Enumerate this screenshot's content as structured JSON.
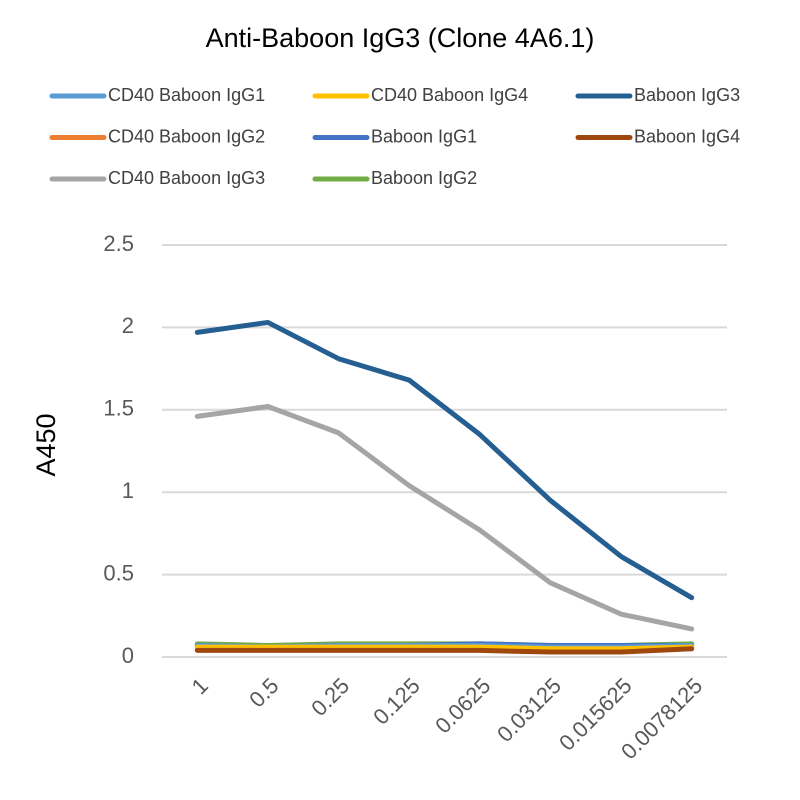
{
  "chart_data": {
    "type": "line",
    "title": "Anti-Baboon IgG3 (Clone 4A6.1)",
    "y_label": "A450",
    "categories": [
      "1",
      "0.5",
      "0.25",
      "0.125",
      "0.0625",
      "0.03125",
      "0.015625",
      "0.0078125"
    ],
    "series": [
      {
        "name": "CD40 Baboon IgG1",
        "color": "#5b9bd5",
        "values": [
          0.07,
          0.06,
          0.07,
          0.07,
          0.07,
          0.06,
          0.06,
          0.07
        ]
      },
      {
        "name": "CD40 Baboon IgG4",
        "color": "#ffc000",
        "values": [
          0.06,
          0.06,
          0.06,
          0.06,
          0.06,
          0.05,
          0.05,
          0.06
        ]
      },
      {
        "name": "Baboon IgG3",
        "color": "#255e91",
        "values": [
          1.97,
          2.03,
          1.81,
          1.68,
          1.35,
          0.95,
          0.61,
          0.36
        ]
      },
      {
        "name": "CD40 Baboon IgG2",
        "color": "#ed7d31",
        "values": [
          0.05,
          0.05,
          0.05,
          0.05,
          0.05,
          0.04,
          0.04,
          0.06
        ]
      },
      {
        "name": "Baboon IgG1",
        "color": "#4472c4",
        "values": [
          0.07,
          0.06,
          0.07,
          0.07,
          0.08,
          0.07,
          0.07,
          0.07
        ]
      },
      {
        "name": "Baboon IgG4",
        "color": "#9e480e",
        "values": [
          0.04,
          0.04,
          0.04,
          0.04,
          0.04,
          0.03,
          0.03,
          0.05
        ]
      },
      {
        "name": "CD40 Baboon IgG3",
        "color": "#a5a5a5",
        "values": [
          1.46,
          1.52,
          1.36,
          1.04,
          0.77,
          0.45,
          0.26,
          0.17
        ]
      },
      {
        "name": "Baboon IgG2",
        "color": "#70ad47",
        "values": [
          0.08,
          0.07,
          0.08,
          0.08,
          0.08,
          0.07,
          0.07,
          0.08
        ]
      }
    ],
    "ylim": [
      0,
      2.5
    ],
    "yticks": [
      0,
      0.5,
      1,
      1.5,
      2,
      2.5
    ],
    "grid": true
  }
}
